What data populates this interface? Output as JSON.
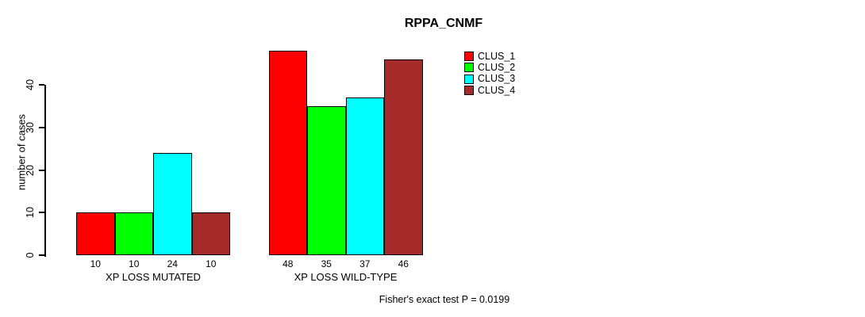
{
  "chart_data": {
    "type": "bar",
    "title": "RPPA_CNMF",
    "xlabel": "",
    "ylabel": "number of cases",
    "ylim": [
      0,
      40
    ],
    "yticks": [
      0,
      10,
      20,
      30,
      40
    ],
    "grid": false,
    "legend_position": "top-right",
    "categories": [
      "XP LOSS MUTATED",
      "XP LOSS WILD-TYPE"
    ],
    "series": [
      {
        "name": "CLUS_1",
        "color": "#FF0000",
        "values": [
          10,
          48
        ]
      },
      {
        "name": "CLUS_2",
        "color": "#00FF00",
        "values": [
          10,
          35
        ]
      },
      {
        "name": "CLUS_3",
        "color": "#00FFFF",
        "values": [
          24,
          37
        ]
      },
      {
        "name": "CLUS_4",
        "color": "#A52A2A",
        "values": [
          10,
          46
        ]
      }
    ],
    "bar_value_labels_shown": true,
    "annotation": "Fisher's exact test P = 0.0199"
  }
}
